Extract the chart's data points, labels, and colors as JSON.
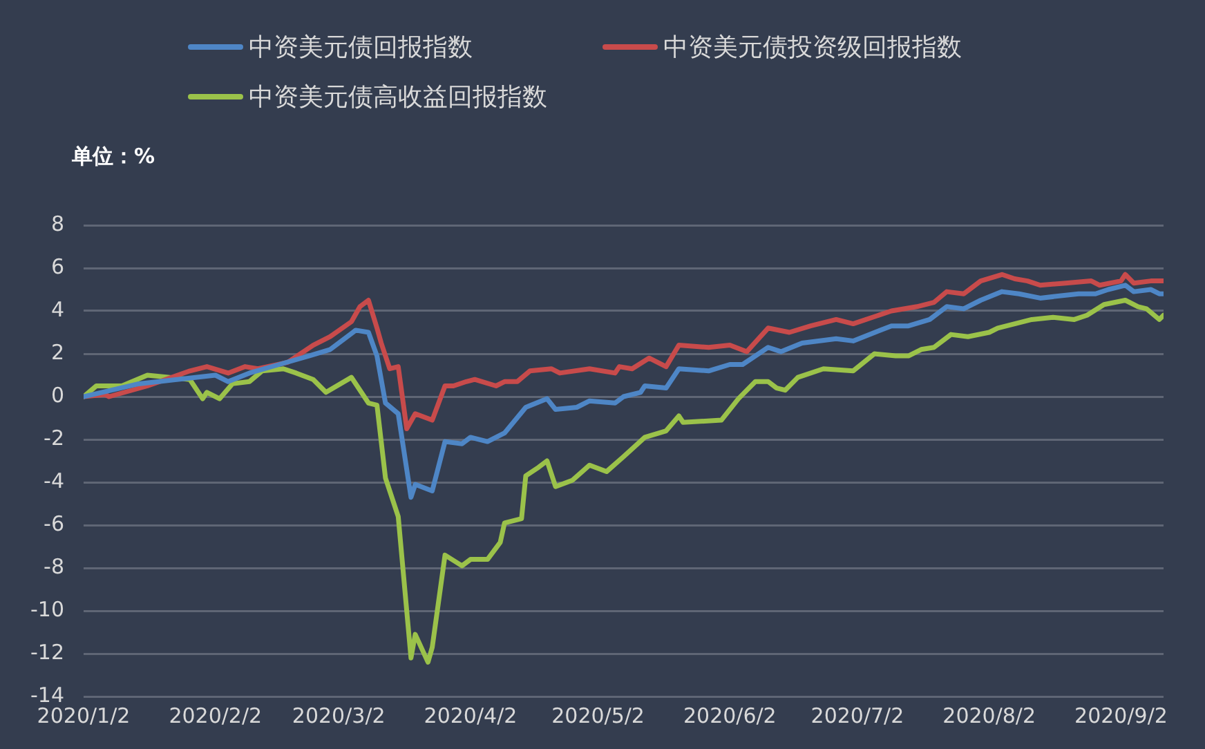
{
  "chart_data": {
    "type": "line",
    "ylabel": "单位：%",
    "xlim": [
      "2020-01-02",
      "2020-09-12"
    ],
    "xticks": [
      {
        "value": "2020-01-02",
        "label": "2020/1/2"
      },
      {
        "value": "2020-02-02",
        "label": "2020/2/2"
      },
      {
        "value": "2020-03-02",
        "label": "2020/3/2"
      },
      {
        "value": "2020-04-02",
        "label": "2020/4/2"
      },
      {
        "value": "2020-05-02",
        "label": "2020/5/2"
      },
      {
        "value": "2020-06-02",
        "label": "2020/6/2"
      },
      {
        "value": "2020-07-02",
        "label": "2020/7/2"
      },
      {
        "value": "2020-08-02",
        "label": "2020/8/2"
      },
      {
        "value": "2020-09-02",
        "label": "2020/9/2"
      }
    ],
    "ylim": [
      -14,
      8
    ],
    "yticks": [
      -14,
      -12,
      -10,
      -8,
      -6,
      -4,
      -2,
      0,
      2,
      4,
      6,
      8
    ],
    "grid": "y",
    "legend": "top",
    "marker": "none",
    "line_style": "solid",
    "series": [
      {
        "name": "中资美元债回报指数",
        "color": "#4e86c6",
        "x": [
          "2020-01-02",
          "2020-01-15",
          "2020-02-02",
          "2020-02-05",
          "2020-02-10",
          "2020-02-17",
          "2020-02-24",
          "2020-02-29",
          "2020-03-06",
          "2020-03-09",
          "2020-03-11",
          "2020-03-13",
          "2020-03-16",
          "2020-03-19",
          "2020-03-20",
          "2020-03-24",
          "2020-03-27",
          "2020-03-31",
          "2020-04-02",
          "2020-04-06",
          "2020-04-10",
          "2020-04-15",
          "2020-04-20",
          "2020-04-22",
          "2020-04-27",
          "2020-04-30",
          "2020-05-06",
          "2020-05-08",
          "2020-05-12",
          "2020-05-13",
          "2020-05-18",
          "2020-05-21",
          "2020-05-28",
          "2020-06-02",
          "2020-06-05",
          "2020-06-11",
          "2020-06-14",
          "2020-06-19",
          "2020-06-27",
          "2020-07-01",
          "2020-07-10",
          "2020-07-14",
          "2020-07-19",
          "2020-07-23",
          "2020-07-27",
          "2020-07-31",
          "2020-08-05",
          "2020-08-09",
          "2020-08-14",
          "2020-08-23",
          "2020-08-27",
          "2020-08-30",
          "2020-09-03",
          "2020-09-05",
          "2020-09-09",
          "2020-09-11",
          "2020-09-12"
        ],
        "values": [
          0,
          0.6,
          1.0,
          0.7,
          1.1,
          1.5,
          1.9,
          2.2,
          3.1,
          3.0,
          1.9,
          -0.3,
          -0.8,
          -4.7,
          -4.1,
          -4.4,
          -2.1,
          -2.2,
          -1.9,
          -2.1,
          -1.7,
          -0.5,
          -0.1,
          -0.6,
          -0.5,
          -0.2,
          -0.3,
          0,
          0.2,
          0.5,
          0.4,
          1.3,
          1.2,
          1.5,
          1.5,
          2.3,
          2.1,
          2.5,
          2.7,
          2.6,
          3.3,
          3.3,
          3.6,
          4.2,
          4.1,
          4.5,
          4.9,
          4.8,
          4.6,
          4.8,
          4.8,
          5.0,
          5.2,
          4.9,
          5.0,
          4.8,
          4.8
        ]
      },
      {
        "name": "中资美元债投资级回报指数",
        "color": "#c84b4b",
        "x": [
          "2020-01-02",
          "2020-01-07",
          "2020-01-08",
          "2020-01-17",
          "2020-01-27",
          "2020-01-31",
          "2020-02-05",
          "2020-02-09",
          "2020-02-12",
          "2020-02-19",
          "2020-02-25",
          "2020-02-29",
          "2020-03-05",
          "2020-03-07",
          "2020-03-09",
          "2020-03-11",
          "2020-03-12",
          "2020-03-14",
          "2020-03-16",
          "2020-03-18",
          "2020-03-20",
          "2020-03-24",
          "2020-03-27",
          "2020-03-29",
          "2020-04-01",
          "2020-04-03",
          "2020-04-08",
          "2020-04-10",
          "2020-04-13",
          "2020-04-16",
          "2020-04-21",
          "2020-04-23",
          "2020-04-30",
          "2020-05-06",
          "2020-05-07",
          "2020-05-10",
          "2020-05-14",
          "2020-05-18",
          "2020-05-21",
          "2020-05-28",
          "2020-06-02",
          "2020-06-06",
          "2020-06-11",
          "2020-06-16",
          "2020-06-21",
          "2020-06-27",
          "2020-07-01",
          "2020-07-10",
          "2020-07-16",
          "2020-07-20",
          "2020-07-23",
          "2020-07-27",
          "2020-07-31",
          "2020-08-05",
          "2020-08-08",
          "2020-08-11",
          "2020-08-14",
          "2020-08-20",
          "2020-08-26",
          "2020-08-28",
          "2020-09-02",
          "2020-09-03",
          "2020-09-05",
          "2020-09-09",
          "2020-09-12"
        ],
        "values": [
          0,
          0.1,
          0,
          0.5,
          1.2,
          1.4,
          1.1,
          1.4,
          1.3,
          1.6,
          2.4,
          2.8,
          3.5,
          4.2,
          4.5,
          3.2,
          2.5,
          1.3,
          1.4,
          -1.5,
          -0.8,
          -1.1,
          0.5,
          0.5,
          0.7,
          0.8,
          0.5,
          0.7,
          0.7,
          1.2,
          1.3,
          1.1,
          1.3,
          1.1,
          1.4,
          1.3,
          1.8,
          1.4,
          2.4,
          2.3,
          2.4,
          2.1,
          3.2,
          3.0,
          3.3,
          3.6,
          3.4,
          4.0,
          4.2,
          4.4,
          4.9,
          4.8,
          5.4,
          5.7,
          5.5,
          5.4,
          5.2,
          5.3,
          5.4,
          5.2,
          5.4,
          5.7,
          5.3,
          5.4,
          5.4
        ]
      },
      {
        "name": "中资美元债高收益回报指数",
        "color": "#9bc24a",
        "x": [
          "2020-01-02",
          "2020-01-05",
          "2020-01-11",
          "2020-01-17",
          "2020-01-27",
          "2020-01-30",
          "2020-01-31",
          "2020-02-03",
          "2020-02-06",
          "2020-02-10",
          "2020-02-13",
          "2020-02-18",
          "2020-02-21",
          "2020-02-25",
          "2020-02-28",
          "2020-03-05",
          "2020-03-09",
          "2020-03-11",
          "2020-03-13",
          "2020-03-16",
          "2020-03-19",
          "2020-03-20",
          "2020-03-23",
          "2020-03-24",
          "2020-03-27",
          "2020-03-31",
          "2020-04-02",
          "2020-04-06",
          "2020-04-09",
          "2020-04-10",
          "2020-04-14",
          "2020-04-15",
          "2020-04-18",
          "2020-04-20",
          "2020-04-22",
          "2020-04-26",
          "2020-04-30",
          "2020-05-04",
          "2020-05-08",
          "2020-05-13",
          "2020-05-18",
          "2020-05-21",
          "2020-05-22",
          "2020-05-31",
          "2020-06-04",
          "2020-06-08",
          "2020-06-11",
          "2020-06-13",
          "2020-06-15",
          "2020-06-18",
          "2020-06-24",
          "2020-07-01",
          "2020-07-06",
          "2020-07-11",
          "2020-07-14",
          "2020-07-17",
          "2020-07-20",
          "2020-07-24",
          "2020-07-28",
          "2020-08-02",
          "2020-08-04",
          "2020-08-12",
          "2020-08-17",
          "2020-08-22",
          "2020-08-25",
          "2020-08-29",
          "2020-09-03",
          "2020-09-06",
          "2020-09-08",
          "2020-09-11",
          "2020-09-12"
        ],
        "values": [
          0,
          0.5,
          0.5,
          1.0,
          0.8,
          -0.1,
          0.2,
          -0.1,
          0.6,
          0.7,
          1.2,
          1.3,
          1.1,
          0.8,
          0.2,
          0.9,
          -0.3,
          -0.4,
          -3.8,
          -5.6,
          -12.2,
          -11.1,
          -12.4,
          -11.7,
          -7.4,
          -7.9,
          -7.6,
          -7.6,
          -6.8,
          -5.9,
          -5.7,
          -3.7,
          -3.3,
          -3.0,
          -4.2,
          -3.9,
          -3.2,
          -3.5,
          -2.8,
          -1.9,
          -1.6,
          -0.9,
          -1.2,
          -1.1,
          -0.1,
          0.7,
          0.7,
          0.4,
          0.3,
          0.9,
          1.3,
          1.2,
          2.0,
          1.9,
          1.9,
          2.2,
          2.3,
          2.9,
          2.8,
          3.0,
          3.2,
          3.6,
          3.7,
          3.6,
          3.8,
          4.3,
          4.5,
          4.2,
          4.1,
          3.6,
          3.8
        ]
      }
    ]
  }
}
